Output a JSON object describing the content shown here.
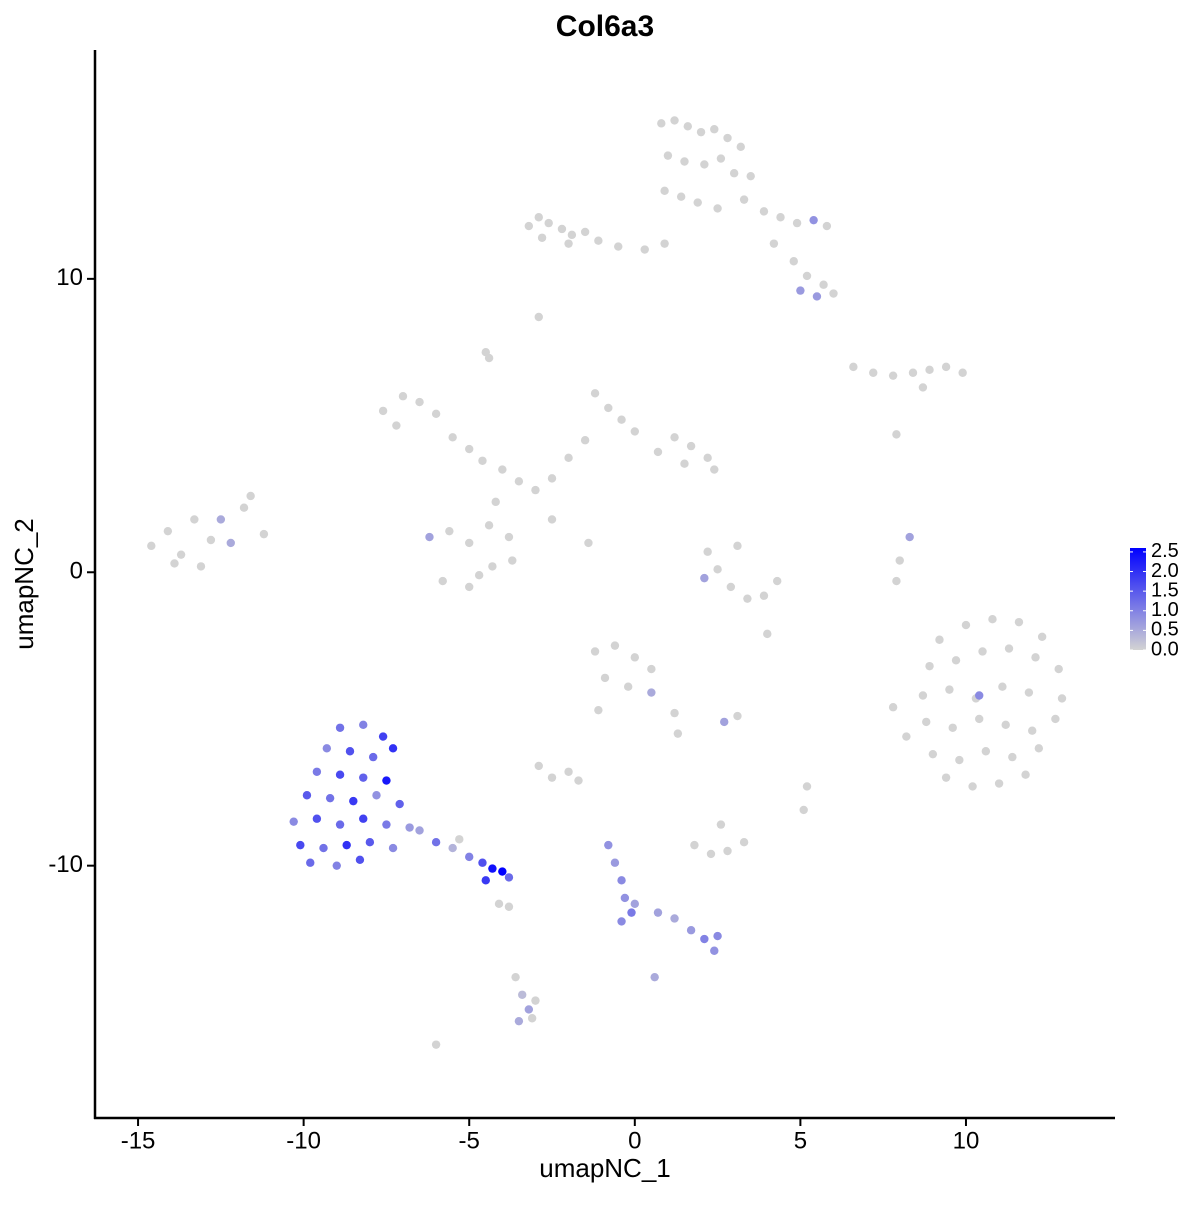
{
  "chart_data": {
    "type": "scatter",
    "title": "Col6a3",
    "x_label": "umapNC_1",
    "y_label": "umapNC_2",
    "xlim": [
      -16.3,
      14.5
    ],
    "ylim": [
      -18.6,
      17.8
    ],
    "xticks": [
      -15,
      -10,
      -5,
      0,
      5,
      10
    ],
    "yticks": [
      -10,
      0,
      10
    ],
    "color_lim": [
      0,
      2.6
    ],
    "colors": [
      "#d3d3d3",
      "#0000ff"
    ],
    "color_ticks": [
      {
        "value": 0,
        "label": "0.0"
      },
      0.5,
      {
        "value": 1,
        "label": "1.0"
      },
      1.5,
      {
        "value": 2,
        "label": "2.0"
      },
      2.5
    ],
    "x": [
      0.8,
      1.2,
      1.6,
      2.0,
      2.4,
      2.8,
      3.2,
      1.0,
      1.5,
      2.1,
      2.6,
      3.0,
      3.5,
      0.9,
      1.4,
      1.9,
      2.5,
      3.3,
      3.9,
      4.4,
      4.9,
      5.4,
      5.8,
      4.2,
      4.8,
      5.2,
      5.7,
      6.0,
      5.0,
      5.5,
      -3.2,
      -2.9,
      -2.6,
      -2.2,
      -1.9,
      -1.5,
      -1.1,
      -0.5,
      0.3,
      0.9,
      -2.8,
      -2.0,
      -2.9,
      -4.5,
      -4.4,
      6.6,
      7.2,
      7.8,
      8.4,
      8.9,
      9.4,
      9.9,
      8.7,
      -7.6,
      -7.0,
      -6.5,
      -6.0,
      -7.2,
      -5.5,
      -5.0,
      -4.6,
      -4.0,
      -3.5,
      -3.0,
      -2.5,
      -4.2,
      -1.2,
      -0.8,
      -0.4,
      0.0,
      -1.5,
      -2.0,
      1.2,
      1.7,
      2.2,
      2.4,
      1.5,
      0.7,
      -6.2,
      -5.6,
      -5.0,
      -4.4,
      -3.8,
      -5.8,
      -5.0,
      -4.3,
      -3.7,
      -4.7,
      -1.4,
      -2.5,
      -14.6,
      -14.1,
      -13.7,
      -13.3,
      -12.8,
      -12.2,
      -11.8,
      -11.2,
      -13.9,
      -13.1,
      -12.5,
      -11.6,
      2.2,
      2.5,
      2.9,
      3.4,
      3.9,
      4.3,
      3.1,
      2.1,
      9.2,
      10.0,
      10.8,
      11.6,
      12.3,
      8.9,
      9.7,
      10.5,
      11.3,
      12.1,
      12.8,
      8.7,
      9.5,
      10.3,
      11.1,
      11.9,
      12.9,
      8.8,
      9.6,
      10.4,
      11.2,
      12.0,
      12.7,
      9.0,
      9.8,
      10.6,
      11.4,
      12.2,
      9.4,
      10.2,
      11.0,
      11.8,
      7.8,
      8.2,
      10.4,
      -1.2,
      -0.6,
      0.0,
      0.5,
      -0.9,
      -0.2,
      0.5,
      1.2,
      1.3,
      -1.1,
      2.7,
      3.1,
      -2.9,
      -2.5,
      -2.0,
      -1.7,
      1.8,
      2.3,
      2.8,
      3.3,
      2.6,
      5.2,
      5.1,
      -8.9,
      -8.2,
      -7.6,
      -9.3,
      -8.6,
      -7.9,
      -7.3,
      -9.6,
      -8.9,
      -8.2,
      -7.5,
      -9.9,
      -9.2,
      -8.5,
      -7.8,
      -7.1,
      -10.3,
      -9.6,
      -8.9,
      -8.2,
      -7.5,
      -6.8,
      -10.1,
      -9.4,
      -8.7,
      -8.0,
      -7.3,
      -9.8,
      -9.0,
      -8.3,
      -6.5,
      -6.0,
      -5.5,
      -5.0,
      -4.6,
      -4.3,
      -4.0,
      -3.8,
      -4.5,
      -5.3,
      -4.1,
      -3.8,
      -0.8,
      -0.6,
      -0.4,
      -0.3,
      -0.1,
      -0.4,
      0.0,
      0.7,
      1.2,
      1.7,
      2.1,
      2.5,
      2.4,
      0.6,
      -3.6,
      -3.4,
      -3.2,
      -3.0,
      -3.5,
      -3.1,
      -6.0,
      4.0,
      8.3,
      8.0,
      7.9,
      7.9
    ],
    "y": [
      15.3,
      15.4,
      15.2,
      15.0,
      15.1,
      14.8,
      14.5,
      14.2,
      14.0,
      13.9,
      14.1,
      13.6,
      13.5,
      13.0,
      12.8,
      12.6,
      12.4,
      12.7,
      12.3,
      12.1,
      11.9,
      12.0,
      11.8,
      11.2,
      10.6,
      10.1,
      9.8,
      9.5,
      9.6,
      9.4,
      11.8,
      12.1,
      11.9,
      11.7,
      11.5,
      11.6,
      11.3,
      11.1,
      11.0,
      11.2,
      11.4,
      11.2,
      8.7,
      7.5,
      7.3,
      7.0,
      6.8,
      6.7,
      6.8,
      6.9,
      7.0,
      6.8,
      6.3,
      5.5,
      6.0,
      5.8,
      5.4,
      5.0,
      4.6,
      4.2,
      3.8,
      3.5,
      3.1,
      2.8,
      3.2,
      2.4,
      6.1,
      5.6,
      5.2,
      4.8,
      4.5,
      3.9,
      4.6,
      4.3,
      3.9,
      3.5,
      3.7,
      4.1,
      1.2,
      1.4,
      1.0,
      1.6,
      1.2,
      -0.3,
      -0.5,
      0.2,
      0.4,
      -0.1,
      1.0,
      1.8,
      0.9,
      1.4,
      0.6,
      1.8,
      1.1,
      1.0,
      2.2,
      1.3,
      0.3,
      0.2,
      1.8,
      2.6,
      0.7,
      0.1,
      -0.5,
      -0.9,
      -0.8,
      -0.3,
      0.9,
      -0.2,
      -2.3,
      -1.8,
      -1.6,
      -1.7,
      -2.2,
      -3.2,
      -3.0,
      -2.7,
      -2.6,
      -2.9,
      -3.3,
      -4.2,
      -4.0,
      -4.3,
      -3.9,
      -4.1,
      -4.3,
      -5.1,
      -5.3,
      -5.0,
      -5.2,
      -5.4,
      -5.0,
      -6.2,
      -6.4,
      -6.1,
      -6.3,
      -6.0,
      -7.0,
      -7.3,
      -7.2,
      -6.9,
      -4.6,
      -5.6,
      -4.2,
      -2.7,
      -2.5,
      -2.9,
      -3.3,
      -3.6,
      -3.9,
      -4.1,
      -4.8,
      -5.5,
      -4.7,
      -5.1,
      -4.9,
      -6.6,
      -7.0,
      -6.8,
      -7.1,
      -9.3,
      -9.6,
      -9.5,
      -9.2,
      -8.6,
      -7.3,
      -8.1,
      -5.3,
      -5.2,
      -5.6,
      -6.0,
      -6.1,
      -6.3,
      -6.0,
      -6.8,
      -6.9,
      -7.0,
      -7.1,
      -7.6,
      -7.7,
      -7.8,
      -7.6,
      -7.9,
      -8.5,
      -8.4,
      -8.6,
      -8.4,
      -8.6,
      -8.7,
      -9.3,
      -9.4,
      -9.3,
      -9.2,
      -9.4,
      -9.9,
      -10.0,
      -9.8,
      -8.8,
      -9.2,
      -9.4,
      -9.7,
      -9.9,
      -10.1,
      -10.2,
      -10.4,
      -10.5,
      -9.1,
      -11.3,
      -11.4,
      -9.3,
      -9.9,
      -10.5,
      -11.1,
      -11.6,
      -11.9,
      -11.3,
      -11.6,
      -11.8,
      -12.2,
      -12.5,
      -12.4,
      -12.9,
      -13.8,
      -13.8,
      -14.4,
      -14.9,
      -14.6,
      -15.3,
      -15.2,
      -16.1,
      -2.1,
      1.2,
      0.4,
      -0.3,
      4.7
    ],
    "values": [
      0,
      0,
      0,
      0,
      0,
      0,
      0,
      0,
      0,
      0,
      0,
      0,
      0,
      0,
      0,
      0,
      0,
      0,
      0,
      0,
      0,
      0.8,
      0,
      0,
      0,
      0,
      0,
      0,
      0.7,
      0.7,
      0,
      0,
      0,
      0,
      0,
      0,
      0,
      0,
      0,
      0,
      0,
      0,
      0,
      0,
      0,
      0,
      0,
      0,
      0,
      0,
      0,
      0,
      0,
      0,
      0,
      0,
      0,
      0,
      0,
      0,
      0,
      0,
      0,
      0,
      0,
      0,
      0,
      0,
      0,
      0,
      0,
      0,
      0,
      0,
      0,
      0,
      0,
      0,
      0.6,
      0,
      0,
      0,
      0,
      0,
      0,
      0,
      0,
      0,
      0,
      0,
      0,
      0,
      0,
      0,
      0,
      0.5,
      0,
      0,
      0,
      0,
      0.5,
      0,
      0,
      0,
      0,
      0,
      0,
      0,
      0,
      0.6,
      0,
      0,
      0,
      0,
      0,
      0,
      0,
      0,
      0,
      0,
      0,
      0,
      0,
      0,
      0,
      0,
      0,
      0,
      0,
      0,
      0,
      0,
      0,
      0,
      0,
      0,
      0,
      0,
      0,
      0,
      0,
      0,
      0,
      0,
      0.9,
      0,
      0,
      0,
      0,
      0,
      0,
      0.5,
      0,
      0,
      0,
      0.6,
      0,
      0,
      0,
      0,
      0,
      0,
      0,
      0,
      0,
      0,
      0,
      0,
      1.2,
      1.0,
      1.8,
      0.9,
      1.6,
      1.3,
      2.0,
      1.1,
      1.7,
      1.4,
      2.3,
      1.5,
      1.2,
      1.9,
      0.8,
      1.4,
      0.9,
      1.6,
      1.3,
      1.8,
      1.1,
      0.7,
      1.7,
      1.2,
      2.0,
      1.5,
      0.9,
      1.3,
      1.0,
      1.6,
      0.6,
      1.2,
      0.4,
      1.0,
      1.6,
      2.4,
      2.6,
      1.3,
      1.9,
      0,
      0,
      0,
      0.8,
      0.7,
      0.9,
      0.8,
      1.1,
      0.9,
      0.6,
      0.6,
      0.5,
      0.7,
      1.0,
      0.9,
      0.8,
      0.5,
      0,
      0.3,
      0.6,
      0,
      0.5,
      0,
      0,
      0,
      0.6,
      0,
      0,
      0
    ]
  }
}
